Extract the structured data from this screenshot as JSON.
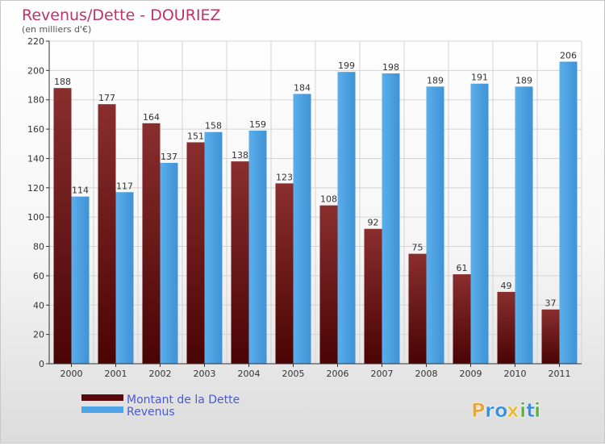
{
  "chart_data": {
    "type": "bar",
    "title": "Revenus/Dette - DOURIEZ",
    "subtitle": "(en milliers d'€)",
    "categories": [
      "2000",
      "2001",
      "2002",
      "2003",
      "2004",
      "2005",
      "2006",
      "2007",
      "2008",
      "2009",
      "2010",
      "2011"
    ],
    "series": [
      {
        "name": "Montant de la Dette",
        "values": [
          188,
          177,
          164,
          151,
          138,
          123,
          108,
          92,
          75,
          61,
          49,
          37
        ],
        "color": "#7a1a1a"
      },
      {
        "name": "Revenus",
        "values": [
          114,
          117,
          137,
          158,
          159,
          184,
          199,
          198,
          189,
          191,
          189,
          206
        ],
        "color": "#4da3e6"
      }
    ],
    "ylim": [
      0,
      220
    ],
    "yticks": [
      0,
      20,
      40,
      60,
      80,
      100,
      120,
      140,
      160,
      180,
      200,
      220
    ],
    "grid": true,
    "legend_position": "bottom-left",
    "title_color": "#c0306a",
    "legend_text_color": "#4a5ad8"
  },
  "branding": {
    "logo_text": "Proxiti",
    "logo_letters": [
      "P",
      "r",
      "o",
      "x",
      "i",
      "t",
      "i"
    ],
    "logo_colors": [
      "#e8a63a",
      "#3a8fd8",
      "#3a8fd8",
      "#e8b830",
      "#60b040",
      "#3a8fd8",
      "#60b040"
    ]
  }
}
